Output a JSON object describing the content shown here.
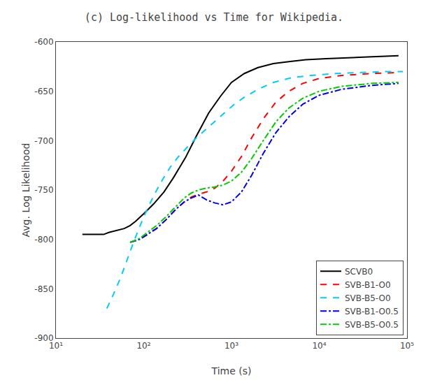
{
  "chart_data": {
    "type": "line",
    "title": "(c) Log-likelihood vs Time for Wikipedia.",
    "xlabel": "Time (s)",
    "ylabel": "Avg. Log Likelihood",
    "log": "x",
    "grid": false,
    "legend": "lower right",
    "xlim": [
      10,
      100000
    ],
    "xticks": [
      {
        "value": 10,
        "label": "10¹"
      },
      {
        "value": 100,
        "label": "10²"
      },
      {
        "value": 1000,
        "label": "10³"
      },
      {
        "value": 10000,
        "label": "10⁴"
      },
      {
        "value": 100000,
        "label": "10⁵"
      }
    ],
    "ylim": [
      -900,
      -600
    ],
    "yticks": [
      -900,
      -850,
      -800,
      -750,
      -700,
      -650,
      -600
    ],
    "series": [
      {
        "name": "SCVB0",
        "color": "#000000",
        "line_style": "solid",
        "x": [
          20,
          25,
          30,
          35,
          40,
          50,
          60,
          70,
          80,
          100,
          130,
          170,
          220,
          300,
          400,
          550,
          750,
          1000,
          1400,
          2000,
          3000,
          4500,
          7000,
          12000,
          20000,
          40000,
          80000
        ],
        "values": [
          -795,
          -795,
          -795,
          -795,
          -793,
          -791,
          -789,
          -786,
          -782,
          -774,
          -764,
          -752,
          -737,
          -717,
          -695,
          -672,
          -655,
          -641,
          -632,
          -626,
          -622,
          -620,
          -618,
          -617,
          -616,
          -615,
          -614
        ]
      },
      {
        "name": "SVB-B1-O0",
        "color": "#ff0000",
        "line_style": "dashed",
        "x": [
          70,
          90,
          110,
          140,
          180,
          230,
          290,
          350,
          430,
          520,
          650,
          800,
          1000,
          1300,
          1700,
          2300,
          3200,
          4500,
          6500,
          10000,
          18000,
          40000,
          80000
        ],
        "values": [
          -803,
          -800,
          -795,
          -789,
          -780,
          -770,
          -762,
          -757,
          -754,
          -752,
          -748,
          -741,
          -731,
          -716,
          -697,
          -678,
          -661,
          -650,
          -642,
          -637,
          -634,
          -632,
          -631
        ]
      },
      {
        "name": "SVB-B5-O0",
        "color": "#00ccff",
        "line_style": "dashed",
        "x": [
          38,
          45,
          55,
          65,
          75,
          90,
          110,
          135,
          165,
          200,
          250,
          310,
          390,
          490,
          620,
          800,
          1050,
          1400,
          2000,
          3000,
          5000,
          8000,
          15000,
          30000,
          60000,
          90000
        ],
        "values": [
          -870,
          -856,
          -838,
          -820,
          -805,
          -787,
          -769,
          -753,
          -739,
          -727,
          -716,
          -707,
          -698,
          -690,
          -682,
          -673,
          -664,
          -656,
          -648,
          -641,
          -636,
          -634,
          -632,
          -631,
          -630,
          -630
        ]
      },
      {
        "name": "SVB-B1-O0.5",
        "color": "#0000ee",
        "line_style": "dashdot",
        "x": [
          70,
          90,
          110,
          140,
          180,
          230,
          290,
          350,
          420,
          520,
          640,
          800,
          1000,
          1300,
          1700,
          2300,
          3200,
          4500,
          6500,
          10000,
          18000,
          40000,
          80000
        ],
        "values": [
          -803,
          -800,
          -795,
          -789,
          -780,
          -770,
          -762,
          -758,
          -755,
          -760,
          -763,
          -765,
          -762,
          -752,
          -735,
          -713,
          -692,
          -676,
          -663,
          -654,
          -648,
          -644,
          -642
        ]
      },
      {
        "name": "SVB-B5-O0.5",
        "color": "#00cc00",
        "line_style": "dashdot",
        "x": [
          70,
          90,
          110,
          140,
          180,
          230,
          290,
          350,
          420,
          520,
          640,
          800,
          1000,
          1300,
          1700,
          2300,
          3200,
          4500,
          6500,
          10000,
          18000,
          40000,
          80000
        ],
        "values": [
          -803,
          -799,
          -793,
          -786,
          -777,
          -767,
          -758,
          -753,
          -750,
          -748,
          -747,
          -745,
          -741,
          -732,
          -718,
          -700,
          -681,
          -667,
          -657,
          -650,
          -645,
          -642,
          -641
        ]
      }
    ]
  }
}
